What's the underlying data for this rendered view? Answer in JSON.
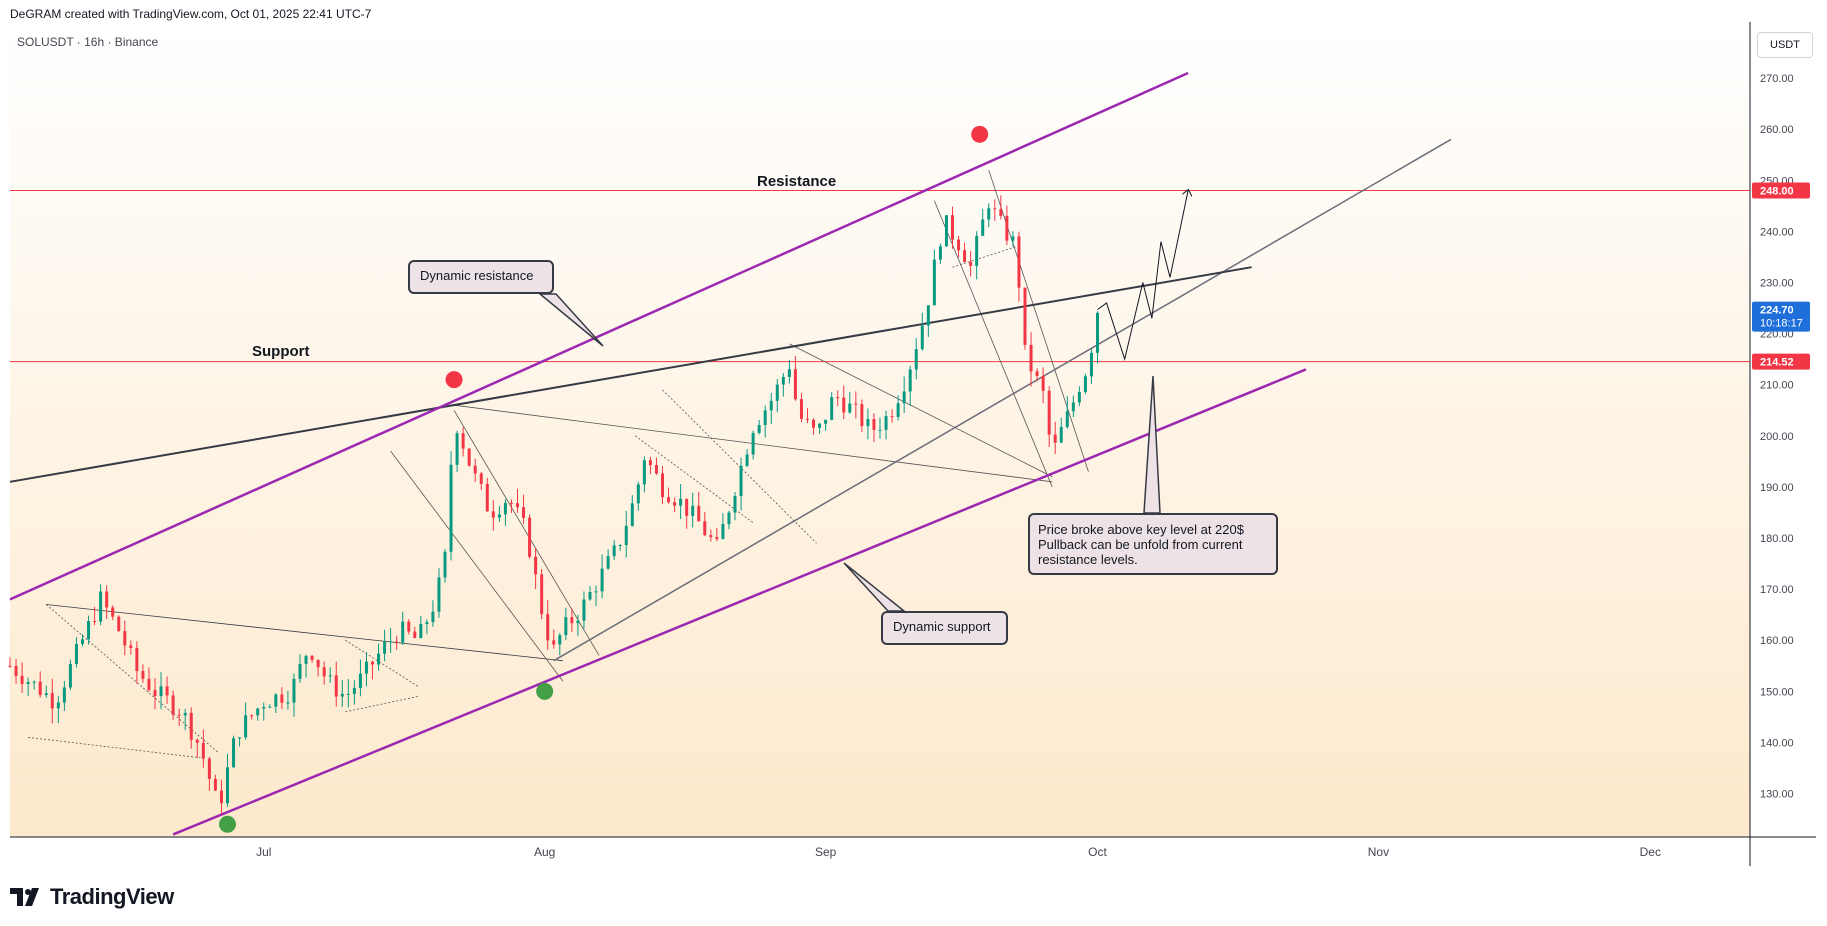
{
  "header": {
    "text": "DeGRAM created with TradingView.com, Oct 01, 2025 22:41 UTC-7"
  },
  "symbol": {
    "info": "SOLUSDT · 16h · Binance"
  },
  "currency": {
    "label": "USDT"
  },
  "footer": {
    "brand": "TradingView"
  },
  "colors": {
    "up": "#089981",
    "down": "#f23645",
    "channel": "#9c27b0",
    "level": "#f23645",
    "current_price_bg": "#1e6fd9"
  },
  "annotations": {
    "resistance": "Resistance",
    "support": "Support",
    "dynamic_resistance": "Dynamic resistance",
    "dynamic_support": "Dynamic support",
    "price_note_line1": "Price broke above key level at 220$",
    "price_note_line2": "Pullback can be unfold from current",
    "price_note_line3": "resistance levels."
  },
  "chart_data": {
    "type": "candlestick",
    "symbol": "SOLUSDT",
    "interval": "16h",
    "exchange": "Binance",
    "y_axis": {
      "ticks": [
        130,
        140,
        150,
        160,
        170,
        180,
        190,
        200,
        210,
        220,
        230,
        240,
        250,
        260,
        270
      ],
      "tick_labels": [
        "130.00",
        "140.00",
        "150.00",
        "160.00",
        "170.00",
        "180.00",
        "190.00",
        "200.00",
        "210.00",
        "220.00",
        "230.00",
        "240.00",
        "250.00",
        "260.00",
        "270.00"
      ],
      "range": [
        121.5,
        280
      ]
    },
    "x_axis": {
      "tick_labels": [
        "Jul",
        "Aug",
        "Sep",
        "Oct",
        "Nov",
        "Dec"
      ],
      "tick_dates": [
        "2025-07-01",
        "2025-08-01",
        "2025-09-01",
        "2025-10-01",
        "2025-11-01",
        "2025-12-01"
      ],
      "range": [
        "2025-06-03",
        "2025-12-12"
      ]
    },
    "price_labels": {
      "resistance_level": "248.00",
      "support_level": "214.52",
      "current_price": "224.70",
      "countdown": "10:18:17"
    },
    "levels": {
      "resistance": 248.0,
      "support": 214.52,
      "current": 224.7
    },
    "price_path": [
      [
        "2025-06-03",
        155
      ],
      [
        "2025-06-08",
        148
      ],
      [
        "2025-06-11",
        160
      ],
      [
        "2025-06-13",
        168
      ],
      [
        "2025-06-15",
        162
      ],
      [
        "2025-06-17",
        154
      ],
      [
        "2025-06-19",
        150
      ],
      [
        "2025-06-22",
        146
      ],
      [
        "2025-06-24",
        139
      ],
      [
        "2025-06-26",
        127
      ],
      [
        "2025-06-28",
        142
      ],
      [
        "2025-07-01",
        148
      ],
      [
        "2025-07-04",
        150
      ],
      [
        "2025-07-06",
        159
      ],
      [
        "2025-07-08",
        152
      ],
      [
        "2025-07-10",
        149
      ],
      [
        "2025-07-12",
        153
      ],
      [
        "2025-07-14",
        158
      ],
      [
        "2025-07-16",
        162
      ],
      [
        "2025-07-18",
        160
      ],
      [
        "2025-07-20",
        168
      ],
      [
        "2025-07-21",
        176
      ],
      [
        "2025-07-22",
        204
      ],
      [
        "2025-07-24",
        193
      ],
      [
        "2025-07-26",
        185
      ],
      [
        "2025-07-28",
        188
      ],
      [
        "2025-07-30",
        181
      ],
      [
        "2025-07-31",
        172
      ],
      [
        "2025-08-01",
        163
      ],
      [
        "2025-08-02",
        158
      ],
      [
        "2025-08-03",
        162
      ],
      [
        "2025-08-05",
        166
      ],
      [
        "2025-08-07",
        172
      ],
      [
        "2025-08-09",
        178
      ],
      [
        "2025-08-11",
        188
      ],
      [
        "2025-08-12",
        196
      ],
      [
        "2025-08-14",
        190
      ],
      [
        "2025-08-16",
        187
      ],
      [
        "2025-08-18",
        183
      ],
      [
        "2025-08-20",
        178
      ],
      [
        "2025-08-22",
        190
      ],
      [
        "2025-08-24",
        202
      ],
      [
        "2025-08-26",
        207
      ],
      [
        "2025-08-28",
        214
      ],
      [
        "2025-08-29",
        204
      ],
      [
        "2025-08-31",
        200
      ],
      [
        "2025-09-02",
        208
      ],
      [
        "2025-09-04",
        205
      ],
      [
        "2025-09-06",
        201
      ],
      [
        "2025-09-08",
        204
      ],
      [
        "2025-09-10",
        212
      ],
      [
        "2025-09-12",
        224
      ],
      [
        "2025-09-14",
        242
      ],
      [
        "2025-09-16",
        237
      ],
      [
        "2025-09-17",
        233
      ],
      [
        "2025-09-19",
        246
      ],
      [
        "2025-09-20",
        242
      ],
      [
        "2025-09-22",
        237
      ],
      [
        "2025-09-23",
        216
      ],
      [
        "2025-09-25",
        208
      ],
      [
        "2025-09-26",
        196
      ],
      [
        "2025-09-27",
        201
      ],
      [
        "2025-09-28",
        205
      ],
      [
        "2025-09-29",
        210
      ],
      [
        "2025-09-30",
        214
      ],
      [
        "2025-10-01",
        224.7
      ]
    ],
    "projection_path": [
      [
        "2025-10-01",
        224.7
      ],
      [
        "2025-10-02",
        226
      ],
      [
        "2025-10-04",
        215
      ],
      [
        "2025-10-06",
        230
      ],
      [
        "2025-10-07",
        223
      ],
      [
        "2025-10-08",
        238
      ],
      [
        "2025-10-09",
        231
      ],
      [
        "2025-10-11",
        248
      ]
    ],
    "trendlines": {
      "channel_upper": [
        [
          "2025-06-03",
          168
        ],
        [
          "2025-10-11",
          271
        ]
      ],
      "channel_lower": [
        [
          "2025-06-21",
          122
        ],
        [
          "2025-10-24",
          213
        ]
      ],
      "black_line": [
        [
          "2025-06-03",
          191
        ],
        [
          "2025-10-18",
          233
        ]
      ],
      "grey_line": [
        [
          "2025-08-02",
          156
        ],
        [
          "2025-11-09",
          258
        ]
      ]
    },
    "markers": {
      "red_dots": [
        [
          "2025-07-22",
          211
        ],
        [
          "2025-09-18",
          259
        ]
      ],
      "green_dots": [
        [
          "2025-06-27",
          124
        ],
        [
          "2025-08-01",
          150
        ]
      ]
    }
  }
}
